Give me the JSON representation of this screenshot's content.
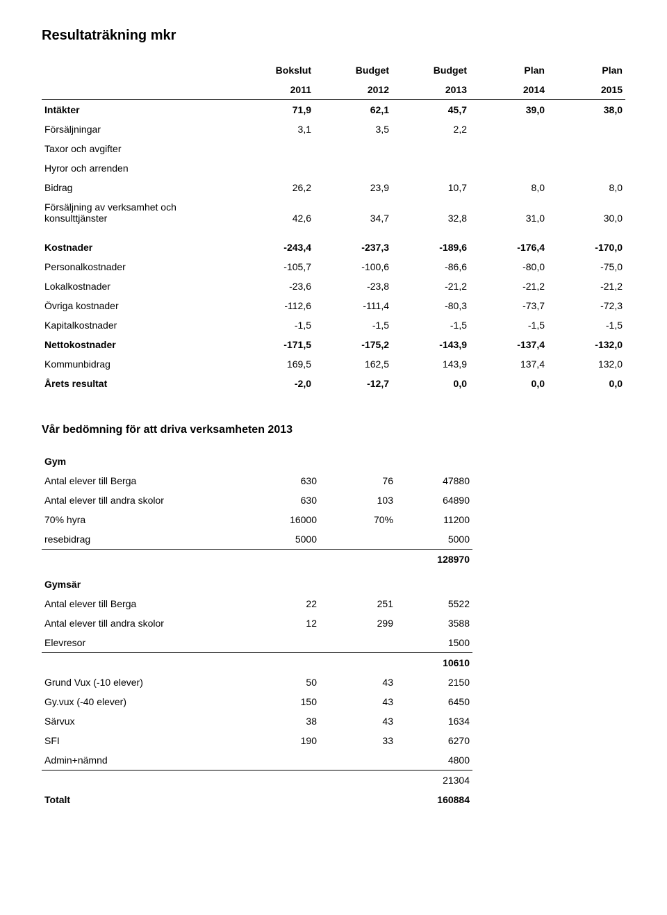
{
  "title": "Resultaträkning mkr",
  "table1": {
    "head1": [
      "",
      "Bokslut",
      "Budget",
      "Budget",
      "Plan",
      "Plan"
    ],
    "head2": [
      "",
      "2011",
      "2012",
      "2013",
      "2014",
      "2015"
    ],
    "rows": [
      {
        "label": "Intäkter",
        "v": [
          "71,9",
          "62,1",
          "45,7",
          "39,0",
          "38,0"
        ],
        "bold": true
      },
      {
        "label": "Försäljningar",
        "v": [
          "3,1",
          "3,5",
          "2,2",
          "",
          ""
        ]
      },
      {
        "label": "Taxor och avgifter",
        "v": [
          "",
          "",
          "",
          "",
          ""
        ]
      },
      {
        "label": "Hyror och arrenden",
        "v": [
          "",
          "",
          "",
          "",
          ""
        ]
      },
      {
        "label": "Bidrag",
        "v": [
          "26,2",
          "23,9",
          "10,7",
          "8,0",
          "8,0"
        ]
      },
      {
        "label": "Försäljning av verksamhet och konsulttjänster",
        "v": [
          "42,6",
          "34,7",
          "32,8",
          "31,0",
          "30,0"
        ]
      },
      {
        "spacer": true
      },
      {
        "label": "Kostnader",
        "v": [
          "-243,4",
          "-237,3",
          "-189,6",
          "-176,4",
          "-170,0"
        ],
        "bold": true
      },
      {
        "label": "Personalkostnader",
        "v": [
          "-105,7",
          "-100,6",
          "-86,6",
          "-80,0",
          "-75,0"
        ]
      },
      {
        "label": "Lokalkostnader",
        "v": [
          "-23,6",
          "-23,8",
          "-21,2",
          "-21,2",
          "-21,2"
        ]
      },
      {
        "label": "Övriga kostnader",
        "v": [
          "-112,6",
          "-111,4",
          "-80,3",
          "-73,7",
          "-72,3"
        ]
      },
      {
        "label": "Kapitalkostnader",
        "v": [
          "-1,5",
          "-1,5",
          "-1,5",
          "-1,5",
          "-1,5"
        ]
      },
      {
        "label": "Nettokostnader",
        "v": [
          "-171,5",
          "-175,2",
          "-143,9",
          "-137,4",
          "-132,0"
        ],
        "bold": true
      },
      {
        "label": "Kommunbidrag",
        "v": [
          "169,5",
          "162,5",
          "143,9",
          "137,4",
          "132,0"
        ]
      },
      {
        "label": "Årets resultat",
        "v": [
          "-2,0",
          "-12,7",
          "0,0",
          "0,0",
          "0,0"
        ],
        "bold": true
      }
    ]
  },
  "assessmentTitle": "Vår bedömning för att driva verksamheten 2013",
  "table2": {
    "rows": [
      {
        "label": "Gym",
        "section": true
      },
      {
        "label": "Antal elever till Berga",
        "v": [
          "630",
          "76",
          "47880"
        ]
      },
      {
        "label": "Antal elever till andra skolor",
        "v": [
          "630",
          "103",
          "64890"
        ]
      },
      {
        "label": "70% hyra",
        "v": [
          "16000",
          "70%",
          "11200"
        ]
      },
      {
        "label": "resebidrag",
        "v": [
          "5000",
          "",
          "5000"
        ],
        "rule": true
      },
      {
        "label": "",
        "v": [
          "",
          "",
          "128970"
        ],
        "bold": true
      },
      {
        "label": "Gymsär",
        "section": true
      },
      {
        "label": "Antal elever till Berga",
        "v": [
          "22",
          "251",
          "5522"
        ]
      },
      {
        "label": "Antal elever till andra skolor",
        "v": [
          "12",
          "299",
          "3588"
        ]
      },
      {
        "label": "Elevresor",
        "v": [
          "",
          "",
          "1500"
        ],
        "rule": true
      },
      {
        "label": "",
        "v": [
          "",
          "",
          "10610"
        ],
        "bold": true
      },
      {
        "label": "Grund Vux (-10 elever)",
        "v": [
          "50",
          "43",
          "2150"
        ]
      },
      {
        "label": "Gy.vux (-40 elever)",
        "v": [
          "150",
          "43",
          "6450"
        ]
      },
      {
        "label": "Särvux",
        "v": [
          "38",
          "43",
          "1634"
        ]
      },
      {
        "label": "SFI",
        "v": [
          "190",
          "33",
          "6270"
        ]
      },
      {
        "label": "Admin+nämnd",
        "v": [
          "",
          "",
          "4800"
        ],
        "rule": true
      },
      {
        "label": "",
        "v": [
          "",
          "",
          "21304"
        ]
      },
      {
        "label": "Totalt",
        "v": [
          "",
          "",
          "160884"
        ],
        "bold": true
      }
    ]
  }
}
